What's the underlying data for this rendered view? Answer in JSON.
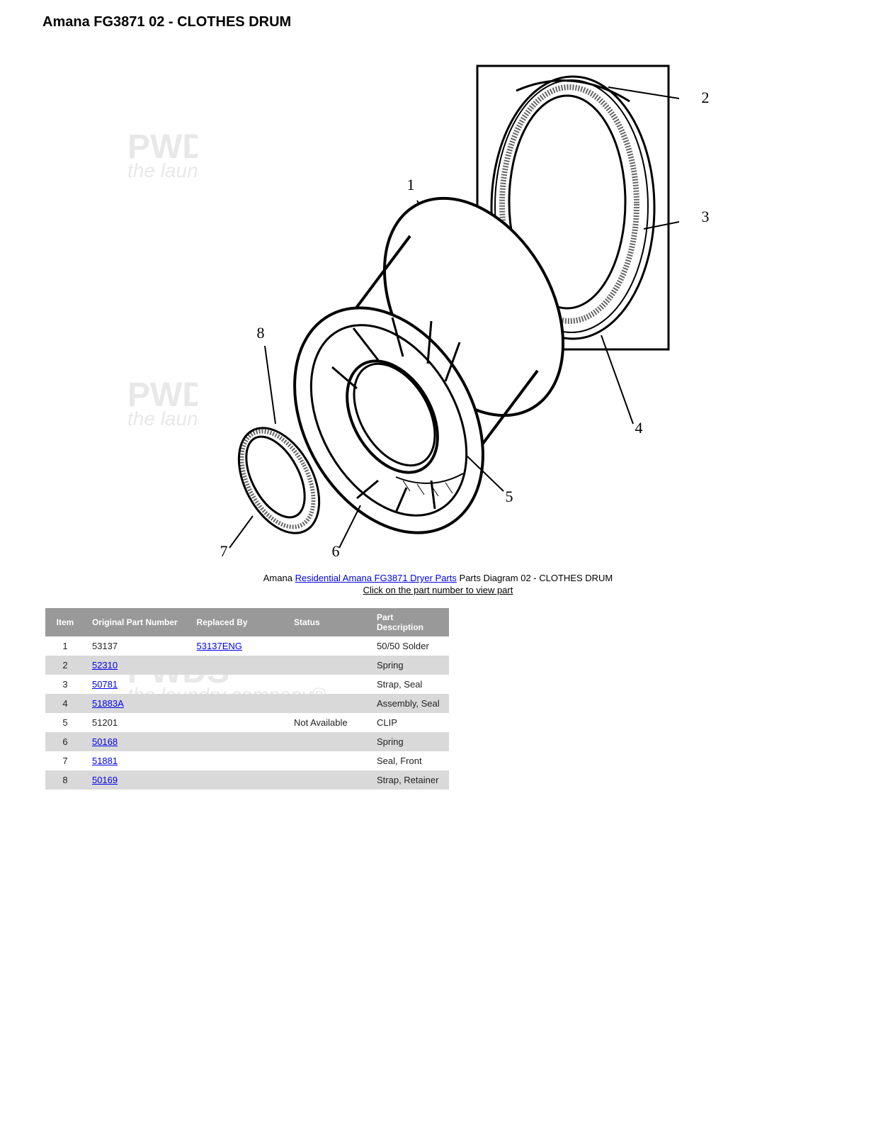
{
  "title": "Amana FG3871 02 - CLOTHES DRUM",
  "caption": {
    "prefix": "Amana ",
    "link_text": "Residential Amana FG3871 Dryer Parts",
    "suffix": " Parts Diagram 02 - CLOTHES DRUM",
    "line2": "Click on the part number to view part"
  },
  "diagram": {
    "callouts": [
      "1",
      "2",
      "3",
      "4",
      "5",
      "6",
      "7",
      "8"
    ]
  },
  "table": {
    "headers": [
      "Item",
      "Original Part Number",
      "Replaced By",
      "Status",
      "Part Description"
    ],
    "rows": [
      {
        "item": "1",
        "opn": "53137",
        "opn_link": false,
        "rep": "53137ENG",
        "rep_link": true,
        "status": "",
        "desc": "50/50 Solder"
      },
      {
        "item": "2",
        "opn": "52310",
        "opn_link": true,
        "rep": "",
        "rep_link": false,
        "status": "",
        "desc": "Spring"
      },
      {
        "item": "3",
        "opn": "50781",
        "opn_link": true,
        "rep": "",
        "rep_link": false,
        "status": "",
        "desc": "Strap, Seal"
      },
      {
        "item": "4",
        "opn": "51883A",
        "opn_link": true,
        "rep": "",
        "rep_link": false,
        "status": "",
        "desc": "Assembly, Seal"
      },
      {
        "item": "5",
        "opn": "51201",
        "opn_link": false,
        "rep": "",
        "rep_link": false,
        "status": "Not Available",
        "desc": "CLIP"
      },
      {
        "item": "6",
        "opn": "50168",
        "opn_link": true,
        "rep": "",
        "rep_link": false,
        "status": "",
        "desc": "Spring"
      },
      {
        "item": "7",
        "opn": "51881",
        "opn_link": true,
        "rep": "",
        "rep_link": false,
        "status": "",
        "desc": "Seal, Front"
      },
      {
        "item": "8",
        "opn": "50169",
        "opn_link": true,
        "rep": "",
        "rep_link": false,
        "status": "",
        "desc": "Strap, Retainer"
      }
    ]
  },
  "watermark": {
    "main": "PWDS",
    "sub": "the laundry company®"
  }
}
